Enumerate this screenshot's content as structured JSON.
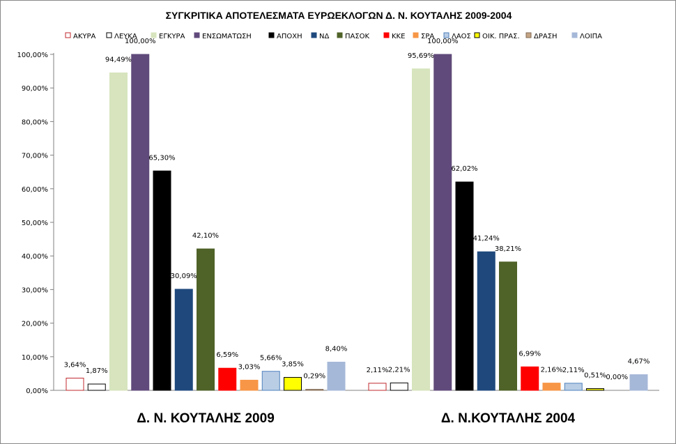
{
  "chart_data": {
    "type": "bar",
    "title": "ΣΥΓΚΡΙΤΙΚΑ ΑΠΟΤΕΛΕΣΜΑΤΑ ΕΥΡΩΕΚΛΟΓΩΝ Δ. Ν. ΚΟΥΤΑΛΗΣ 2009-2004",
    "categories": [
      "Δ. Ν. ΚΟΥΤΑΛΗΣ 2009",
      "Δ. Ν.ΚΟΥΤΑΛΗΣ 2004"
    ],
    "ylim": [
      0,
      100
    ],
    "yticks": [
      "0,00%",
      "10,00%",
      "20,00%",
      "30,00%",
      "40,00%",
      "50,00%",
      "60,00%",
      "70,00%",
      "80,00%",
      "90,00%",
      "100,00%"
    ],
    "legend_position": "top",
    "grid": false,
    "series": [
      {
        "name": "ΑΚΥΡΑ",
        "color": "#ffffff",
        "stroke": "#c0282d",
        "values": [
          3.64,
          2.11
        ],
        "labels": [
          "3,64%",
          "2,11%"
        ]
      },
      {
        "name": "ΛΕΥΚΑ",
        "color": "#ffffff",
        "stroke": "#000000",
        "values": [
          1.87,
          2.21
        ],
        "labels": [
          "1,87%",
          "2,21%"
        ]
      },
      {
        "name": "ΕΓΚΥΡΑ",
        "color": "#d7e4bd",
        "stroke": "#d7e4bd",
        "values": [
          94.49,
          95.69
        ],
        "labels": [
          "94,49%",
          "95,69%"
        ]
      },
      {
        "name": "ΕΝΣΩΜΑΤΩΣΗ",
        "color": "#604a7b",
        "stroke": "#604a7b",
        "values": [
          100.0,
          100.0
        ],
        "labels": [
          "100,00%",
          "100,00%"
        ]
      },
      {
        "name": "ΑΠΟΧΗ",
        "color": "#000000",
        "stroke": "#000000",
        "values": [
          65.3,
          62.02
        ],
        "labels": [
          "65,30%",
          "62,02%"
        ]
      },
      {
        "name": "ΝΔ",
        "color": "#1f497d",
        "stroke": "#1f497d",
        "values": [
          30.09,
          41.24
        ],
        "labels": [
          "30,09%",
          "41,24%"
        ]
      },
      {
        "name": "ΠΑΣΟΚ",
        "color": "#4f6228",
        "stroke": "#4f6228",
        "values": [
          42.1,
          38.21
        ],
        "labels": [
          "42,10%",
          "38,21%"
        ]
      },
      {
        "name": "ΚΚΕ",
        "color": "#ff0000",
        "stroke": "#ff0000",
        "values": [
          6.59,
          6.99
        ],
        "labels": [
          "6,59%",
          "6,99%"
        ]
      },
      {
        "name": "ΣΡΑ",
        "color": "#f79646",
        "stroke": "#f79646",
        "values": [
          3.03,
          2.16
        ],
        "labels": [
          "3,03%",
          "2,16%"
        ]
      },
      {
        "name": "ΛΑΟΣ",
        "color": "#b9cde5",
        "stroke": "#4f81bd",
        "values": [
          5.66,
          2.11
        ],
        "labels": [
          "5,66%",
          "2,11%"
        ]
      },
      {
        "name": "ΟΙΚ. ΠΡΑΣ.",
        "color": "#ffff00",
        "stroke": "#000000",
        "values": [
          3.85,
          0.51
        ],
        "labels": [
          "3,85%",
          "0,51%"
        ]
      },
      {
        "name": "ΔΡΑΣΗ",
        "color": "#c4a484",
        "stroke": "#7f6a55",
        "values": [
          0.29,
          0.0
        ],
        "labels": [
          "0,29%",
          "0,00%"
        ]
      },
      {
        "name": "ΛΟΙΠΑ",
        "color": "#a6b8d8",
        "stroke": "#a6b8d8",
        "values": [
          8.4,
          4.67
        ],
        "labels": [
          "8,40%",
          "4,67%"
        ]
      }
    ]
  }
}
